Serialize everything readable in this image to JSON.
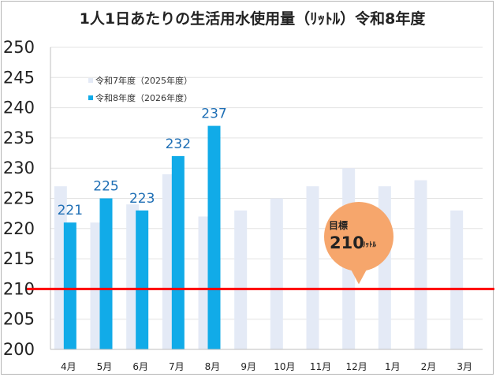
{
  "chart_data": {
    "type": "bar",
    "title": "1人1日あたりの生活用水使用量（ﾘｯﾄﾙ）令和8年度",
    "categories": [
      "4月",
      "5月",
      "6月",
      "7月",
      "8月",
      "9月",
      "10月",
      "11月",
      "12月",
      "1月",
      "2月",
      "3月"
    ],
    "series": [
      {
        "name": "令和7年度（2025年度）",
        "values": [
          227,
          221,
          224,
          229,
          222,
          223,
          225,
          227,
          230,
          227,
          228,
          223
        ],
        "color": "#e4eaf6"
      },
      {
        "name": "令和8年度（2026年度）",
        "values": [
          221,
          225,
          223,
          232,
          237,
          null,
          null,
          null,
          null,
          null,
          null,
          null
        ],
        "color": "#11abe8"
      }
    ],
    "data_labels": [
      "221",
      "225",
      "223",
      "232",
      "237"
    ],
    "ylim": [
      200,
      250
    ],
    "yticks": [
      "200",
      "205",
      "210",
      "215",
      "220",
      "225",
      "230",
      "235",
      "240",
      "245",
      "250"
    ],
    "grid": true,
    "legend_position": "top-left",
    "target": {
      "value": 210,
      "label": "目標",
      "value_text": "210",
      "unit": "ﾘｯﾄﾙ",
      "line_color": "#ff0000",
      "bubble_color": "#f6a66c"
    }
  }
}
